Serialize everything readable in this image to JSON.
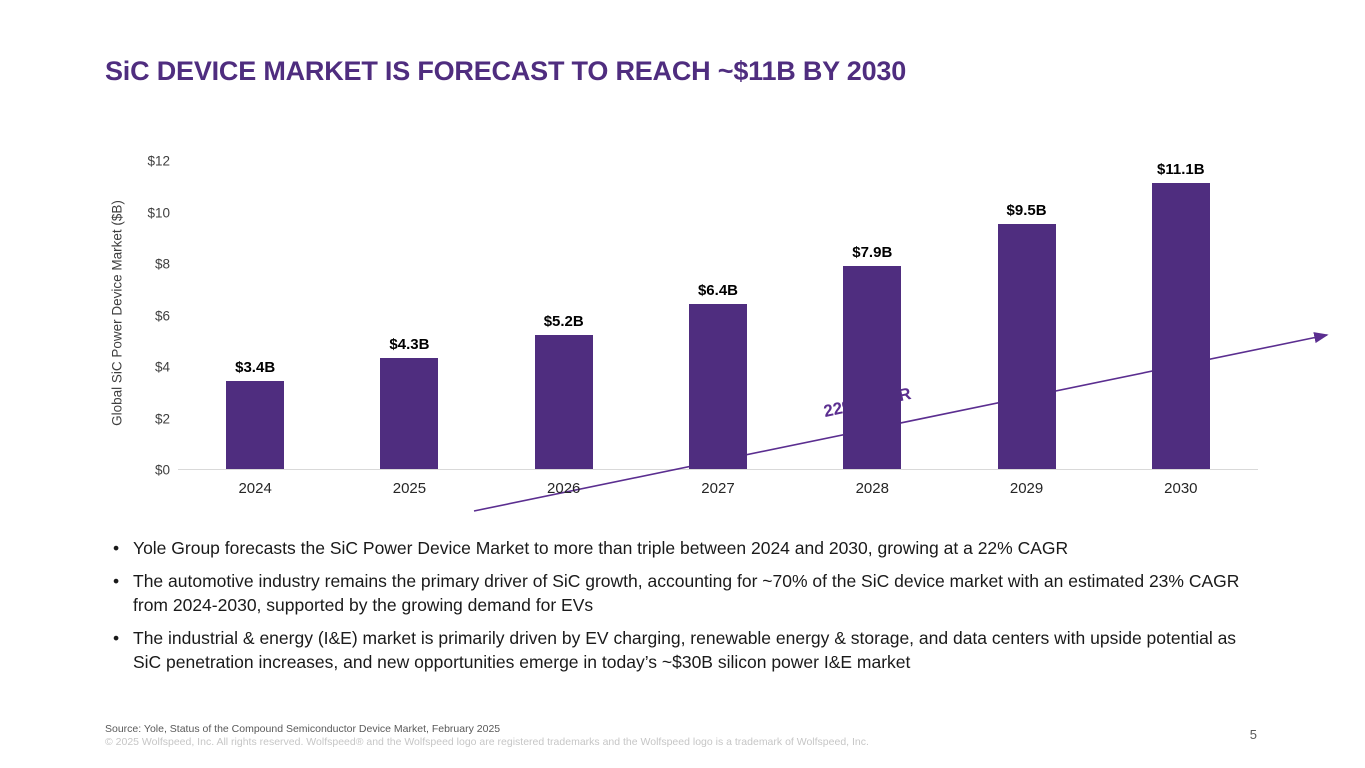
{
  "slide": {
    "title": "SiC DEVICE MARKET IS FORECAST TO REACH ~$11B BY 2030",
    "page_number": "5",
    "bullets": [
      "Yole Group forecasts the SiC Power Device Market to more than triple between 2024 and 2030, growing at a 22% CAGR",
      "The automotive industry remains the primary driver of SiC growth, accounting for ~70% of the SiC device market with an estimated 23% CAGR from 2024-2030, supported by the growing demand for EVs",
      "The industrial & energy (I&E) market is primarily driven by EV charging, renewable energy & storage, and data centers with upside potential as SiC penetration increases, and new opportunities emerge in today’s ~$30B silicon power I&E market"
    ],
    "footer": {
      "source": "Source: Yole, Status of the Compound Semiconductor Device Market, February 2025",
      "copyright": "© 2025 Wolfspeed, Inc. All rights reserved. Wolfspeed® and the Wolfspeed logo are registered trademarks and the Wolfspeed logo is a trademark of Wolfspeed, Inc."
    }
  },
  "chart_data": {
    "type": "bar",
    "title": "SiC DEVICE MARKET IS FORECAST TO REACH ~$11B BY 2030",
    "categories": [
      "2024",
      "2025",
      "2026",
      "2027",
      "2028",
      "2029",
      "2030"
    ],
    "values": [
      3.4,
      4.3,
      5.2,
      6.4,
      7.9,
      9.5,
      11.1
    ],
    "value_labels": [
      "$3.4B",
      "$4.3B",
      "$5.2B",
      "$6.4B",
      "$7.9B",
      "$9.5B",
      "$11.1B"
    ],
    "xlabel": "",
    "ylabel": "Global SiC Power Device Market ($B)",
    "ylim": [
      0,
      12
    ],
    "yticks": [
      0,
      2,
      4,
      6,
      8,
      10,
      12
    ],
    "ytick_labels": [
      "$0",
      "$2",
      "$4",
      "$6",
      "$8",
      "$10",
      "$12"
    ],
    "annotation": "22% CAGR",
    "grid": false,
    "legend": false,
    "bar_color": "#4F2D7F",
    "annotation_color": "#5B2E90",
    "axis_line_color": "#d9d9d9"
  },
  "colors": {
    "title": "#4F2D7F",
    "bar": "#4F2D7F",
    "cagr_arrow": "#5B2E90",
    "body_text": "#1a1a1a",
    "footer_source": "#595959",
    "footer_copyright": "#c6c6c6"
  }
}
